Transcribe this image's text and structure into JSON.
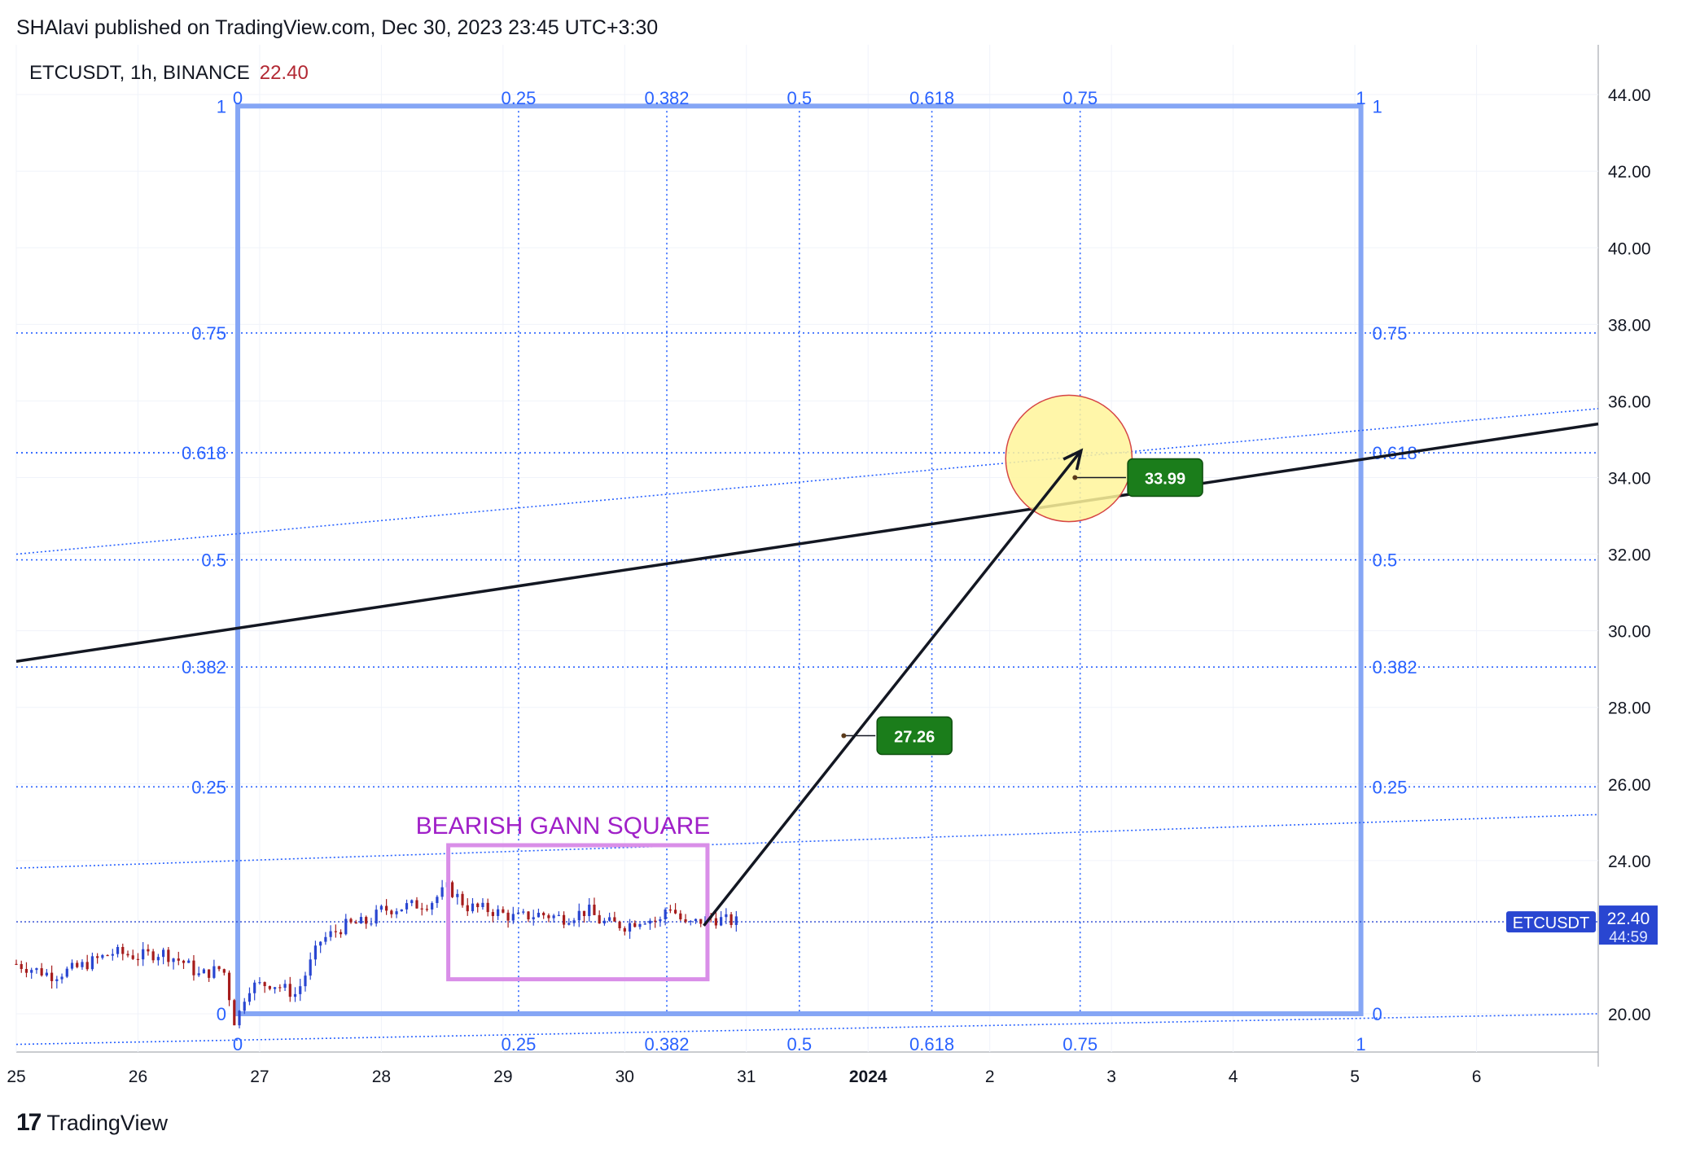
{
  "header": {
    "publish_line": "SHAlavi published on TradingView.com, Dec 30, 2023 23:45 UTC+3:30"
  },
  "legend": {
    "symbol": "ETCUSDT, 1h, BINANCE",
    "last_value": "22.40"
  },
  "footer": {
    "brand": "TradingView",
    "logo_glyph": "17"
  },
  "colors": {
    "gann": "#2962ff",
    "gann_frame": "#85a6f5",
    "up_candle": "#2946d1",
    "down_candle": "#a61c1c",
    "annotation": "#a020c8",
    "box": "#d98ee8",
    "target_fill": "#fff59a",
    "target_stroke": "#d64545",
    "callout": "#1b7d1b"
  },
  "chart_data": {
    "type": "candlestick",
    "symbol": "ETCUSDT",
    "interval": "1h",
    "exchange": "BINANCE",
    "y_ticks": [
      "20.00",
      "24.00",
      "26.00",
      "28.00",
      "30.00",
      "32.00",
      "34.00",
      "36.00",
      "38.00",
      "40.00",
      "42.00",
      "44.00"
    ],
    "ylim": [
      19.0,
      45.3
    ],
    "x_ticks": [
      {
        "label": "25",
        "day": 25
      },
      {
        "label": "26",
        "day": 26
      },
      {
        "label": "27",
        "day": 27
      },
      {
        "label": "28",
        "day": 28
      },
      {
        "label": "29",
        "day": 29
      },
      {
        "label": "30",
        "day": 30
      },
      {
        "label": "31",
        "day": 31
      },
      {
        "label": "2024",
        "day": 32,
        "bold": true
      },
      {
        "label": "2",
        "day": 33
      },
      {
        "label": "3",
        "day": 34
      },
      {
        "label": "4",
        "day": 35
      },
      {
        "label": "5",
        "day": 36
      },
      {
        "label": "6",
        "day": 37
      }
    ],
    "xlim": [
      25.0,
      38.0
    ],
    "price_label": {
      "symbol": "ETCUSDT",
      "value": "22.40",
      "countdown": "44:59"
    },
    "price_series": [
      [
        25.0,
        21.3
      ],
      [
        25.3,
        21.0
      ],
      [
        25.5,
        21.2
      ],
      [
        25.8,
        21.6
      ],
      [
        26.0,
        21.5
      ],
      [
        26.2,
        21.6
      ],
      [
        26.4,
        21.3
      ],
      [
        26.5,
        21.0
      ],
      [
        26.7,
        21.2
      ],
      [
        26.8,
        19.7
      ],
      [
        26.9,
        20.7
      ],
      [
        27.1,
        20.8
      ],
      [
        27.3,
        20.5
      ],
      [
        27.5,
        21.9
      ],
      [
        27.7,
        22.3
      ],
      [
        27.9,
        22.4
      ],
      [
        28.0,
        22.7
      ],
      [
        28.2,
        22.8
      ],
      [
        28.4,
        22.9
      ],
      [
        28.55,
        23.3
      ],
      [
        28.7,
        22.8
      ],
      [
        28.9,
        22.7
      ],
      [
        29.1,
        22.5
      ],
      [
        29.3,
        22.6
      ],
      [
        29.5,
        22.5
      ],
      [
        29.7,
        22.7
      ],
      [
        29.8,
        22.4
      ],
      [
        30.0,
        22.3
      ],
      [
        30.15,
        22.5
      ],
      [
        30.3,
        22.4
      ],
      [
        30.35,
        22.9
      ],
      [
        30.5,
        22.3
      ],
      [
        30.7,
        22.5
      ],
      [
        30.9,
        22.4
      ]
    ],
    "gann_square": {
      "price_range": [
        20.0,
        43.7
      ],
      "time_range": [
        26.82,
        36.05
      ],
      "levels": [
        "0",
        "0.25",
        "0.382",
        "0.5",
        "0.618",
        "0.75",
        "1"
      ],
      "level_values": [
        0,
        0.25,
        0.382,
        0.5,
        0.618,
        0.75,
        1
      ]
    },
    "annotations": [
      {
        "type": "label",
        "text": "BEARISH GANN SQUARE"
      },
      {
        "type": "box",
        "time": [
          28.55,
          30.68
        ],
        "price": [
          20.9,
          24.4
        ]
      },
      {
        "type": "arrow",
        "from": [
          30.65,
          22.3
        ],
        "to": [
          33.75,
          34.7
        ]
      },
      {
        "type": "trendline",
        "from": [
          25.0,
          29.2
        ],
        "to": [
          38.0,
          35.4
        ]
      },
      {
        "type": "target_circle",
        "center": [
          33.65,
          34.5
        ],
        "radius_price": 1.65
      },
      {
        "type": "callout",
        "text": "33.99",
        "anchor": [
          34.12,
          34.0
        ]
      },
      {
        "type": "callout",
        "text": "27.26",
        "anchor": [
          32.06,
          27.26
        ]
      }
    ]
  }
}
